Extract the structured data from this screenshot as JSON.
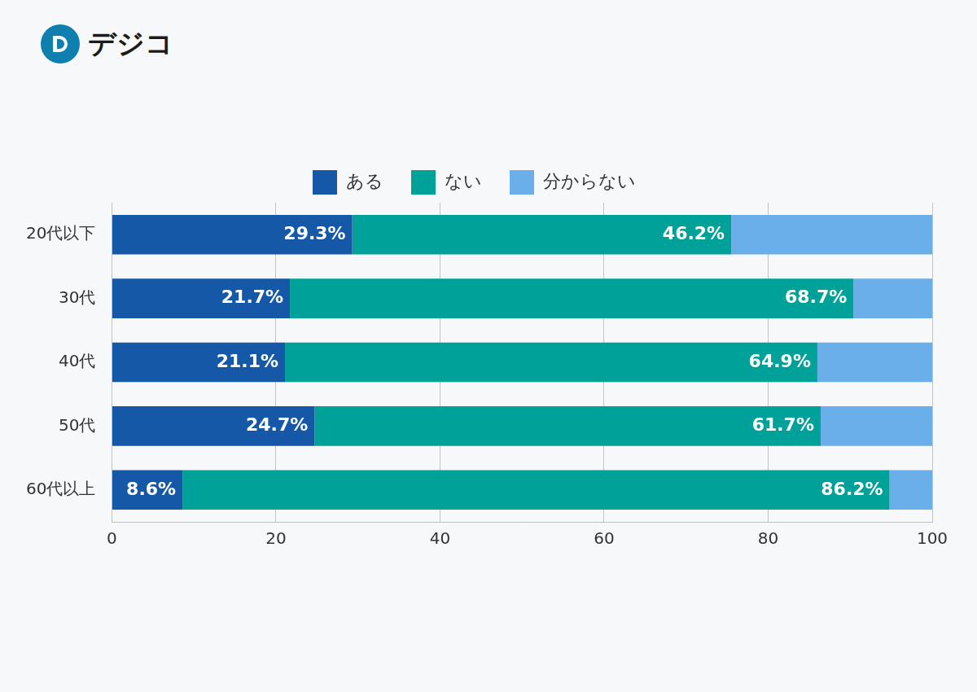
{
  "chart_data": {
    "type": "bar",
    "orientation": "horizontal",
    "stacked": true,
    "annotations": [
      "デジコ"
    ],
    "categories": [
      "20代以下",
      "30代",
      "40代",
      "50代",
      "60代以上"
    ],
    "series": [
      {
        "name": "ある",
        "color": "#1558a8",
        "data_labels": true,
        "values": [
          29.3,
          21.7,
          21.1,
          24.7,
          8.6
        ],
        "value_labels": [
          "29.3%",
          "21.7%",
          "21.1%",
          "24.7%",
          "8.6%"
        ]
      },
      {
        "name": "ない",
        "color": "#00a199",
        "data_labels": true,
        "values": [
          46.2,
          68.7,
          64.9,
          61.7,
          86.2
        ],
        "value_labels": [
          "46.2%",
          "68.7%",
          "64.9%",
          "61.7%",
          "86.2%"
        ]
      },
      {
        "name": "分からない",
        "color": "#6aaeea",
        "data_labels": false,
        "values": [
          24.5,
          9.6,
          14.0,
          13.6,
          5.2
        ]
      }
    ],
    "xlim": [
      0,
      100
    ],
    "xticks": [
      0,
      20,
      40,
      60,
      80,
      100
    ],
    "grid": true,
    "legend": "top"
  }
}
